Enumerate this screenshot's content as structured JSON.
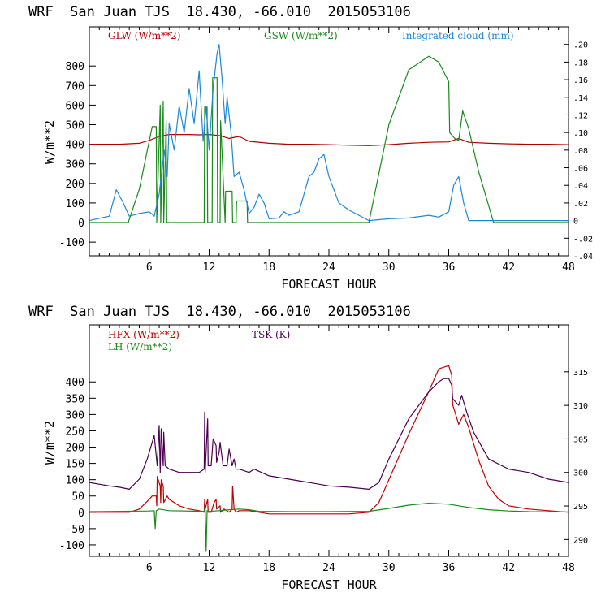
{
  "chart_data": [
    {
      "type": "line",
      "title": "WRF  San Juan TJS  18.430, -66.010  2015053106",
      "xlabel": "FORECAST HOUR",
      "ylabel": "W/m**2",
      "xlim": [
        0,
        48
      ],
      "ylim": [
        -170,
        1000
      ],
      "y2lim": [
        -0.04,
        0.22
      ],
      "x_ticks": [
        "6",
        "12",
        "18",
        "24",
        "30",
        "36",
        "42",
        "48"
      ],
      "y_ticks": [
        "-100",
        "0",
        "100",
        "200",
        "300",
        "400",
        "500",
        "600",
        "700",
        "800"
      ],
      "y2_ticks": [
        "-.04",
        "-.02",
        "0",
        ".02",
        ".04",
        ".06",
        ".08",
        ".10",
        ".12",
        ".14",
        ".16",
        ".18",
        ".20"
      ],
      "series": [
        {
          "name": "GLW (W/m**2)",
          "color": "#b00000",
          "axis": "left",
          "x": [
            0,
            3,
            5,
            6,
            7,
            8,
            9,
            10,
            11,
            12,
            13,
            14,
            15,
            16,
            18,
            20,
            22,
            24,
            26,
            28,
            30,
            32,
            34,
            36,
            37,
            38,
            40,
            42,
            44,
            46,
            48
          ],
          "y": [
            400,
            400,
            405,
            420,
            440,
            450,
            450,
            450,
            448,
            450,
            445,
            430,
            440,
            415,
            405,
            400,
            400,
            398,
            395,
            393,
            398,
            405,
            410,
            412,
            430,
            410,
            405,
            402,
            400,
            400,
            398
          ]
        },
        {
          "name": "GSW (W/m**2)",
          "color": "#1a8a1a",
          "axis": "left",
          "x": [
            0,
            3.9,
            5,
            6.3,
            6.7,
            6.75,
            7.1,
            7.15,
            7.4,
            7.45,
            7.7,
            7.75,
            8.5,
            11.5,
            11.55,
            11.8,
            11.85,
            12.3,
            12.35,
            12.8,
            12.85,
            13.1,
            13.15,
            13.6,
            13.65,
            14.3,
            14.35,
            14.7,
            14.75,
            15.8,
            15.85,
            16.5,
            28,
            30,
            32,
            34,
            35,
            36,
            36.1,
            36.6,
            37,
            37.4,
            38,
            39,
            40.5,
            48
          ],
          "y": [
            0,
            0,
            170,
            490,
            490,
            0,
            600,
            0,
            620,
            0,
            520,
            0,
            0,
            0,
            590,
            590,
            0,
            0,
            740,
            740,
            0,
            0,
            520,
            0,
            160,
            160,
            0,
            0,
            110,
            110,
            0,
            0,
            0,
            500,
            780,
            850,
            820,
            720,
            460,
            430,
            420,
            570,
            480,
            260,
            0,
            0
          ]
        },
        {
          "name": "Integrated cloud (mm)",
          "color": "#1e88d8",
          "axis": "right",
          "x": [
            0,
            2,
            2.7,
            3.4,
            4,
            5,
            6,
            6.5,
            7,
            7.5,
            7.8,
            8,
            8.5,
            9,
            9.5,
            10,
            10.5,
            11,
            11.4,
            11.7,
            12,
            12.4,
            12.8,
            13,
            13.3,
            13.6,
            13.8,
            14.2,
            14.5,
            15,
            15.5,
            16,
            16.5,
            17,
            17.5,
            18,
            19,
            19.5,
            20,
            21,
            22,
            22.5,
            23,
            23.5,
            24,
            25,
            26,
            27,
            28,
            30,
            32,
            34,
            35,
            36,
            36.5,
            37,
            37.5,
            38,
            40,
            42,
            44,
            48
          ],
          "y": [
            0,
            0.005,
            0.035,
            0.02,
            0.005,
            0.008,
            0.01,
            0.005,
            0.03,
            0.08,
            0.05,
            0.11,
            0.08,
            0.13,
            0.1,
            0.15,
            0.11,
            0.17,
            0.09,
            0.13,
            0.08,
            0.15,
            0.19,
            0.2,
            0.16,
            0.11,
            0.14,
            0.1,
            0.05,
            0.055,
            0.035,
            0.008,
            0.015,
            0.03,
            0.02,
            0.002,
            0.003,
            0.01,
            0.006,
            0.01,
            0.05,
            0.055,
            0.07,
            0.075,
            0.05,
            0.02,
            0.012,
            0.006,
            0,
            0.002,
            0.003,
            0.006,
            0.004,
            0.01,
            0.04,
            0.05,
            0.02,
            0,
            0,
            0,
            0,
            0
          ]
        }
      ]
    },
    {
      "type": "line",
      "title": "WRF  San Juan TJS  18.430, -66.010  2015053106",
      "xlabel": "FORECAST HOUR",
      "ylabel": "W/m**2",
      "xlim": [
        0,
        48
      ],
      "ylim": [
        -135,
        575
      ],
      "y2lim": [
        287.5,
        322
      ],
      "x_ticks": [
        "6",
        "12",
        "18",
        "24",
        "30",
        "36",
        "42",
        "48"
      ],
      "y_ticks": [
        "-100",
        "-50",
        "0",
        "50",
        "100",
        "150",
        "200",
        "250",
        "300",
        "350",
        "400"
      ],
      "y2_ticks": [
        "290",
        "295",
        "300",
        "305",
        "310",
        "315"
      ],
      "series": [
        {
          "name": "HFX (W/m**2)",
          "color": "#c00000",
          "axis": "left",
          "x": [
            0,
            3,
            4,
            5,
            6,
            6.3,
            6.7,
            6.75,
            6.8,
            7.1,
            7.15,
            7.2,
            7.4,
            7.45,
            7.8,
            8,
            9,
            10,
            11,
            11.5,
            11.55,
            11.6,
            11.85,
            11.9,
            12.2,
            12.5,
            12.7,
            12.75,
            13.1,
            13.15,
            13.5,
            14,
            14.3,
            14.35,
            14.5,
            14.7,
            15,
            16,
            17,
            18,
            20,
            22,
            24,
            26,
            28,
            29,
            30,
            32,
            34,
            35,
            36,
            36.3,
            36.4,
            37,
            37.5,
            38,
            39,
            40,
            41,
            42,
            44,
            46,
            48
          ],
          "y": [
            0,
            0,
            0,
            10,
            40,
            50,
            50,
            20,
            110,
            80,
            30,
            100,
            80,
            30,
            50,
            40,
            20,
            10,
            5,
            0,
            40,
            10,
            40,
            0,
            0,
            30,
            40,
            10,
            20,
            0,
            10,
            0,
            10,
            80,
            10,
            0,
            5,
            5,
            0,
            -5,
            -5,
            -5,
            -5,
            -5,
            0,
            30,
            100,
            240,
            370,
            440,
            450,
            420,
            330,
            270,
            300,
            260,
            160,
            80,
            40,
            20,
            10,
            5,
            0
          ]
        },
        {
          "name": "LH  (W/m**2)",
          "color": "#1a8a1a",
          "axis": "left",
          "x": [
            0,
            6,
            6.5,
            6.6,
            6.7,
            7,
            8,
            11.5,
            11.6,
            11.7,
            11.8,
            12,
            13,
            14,
            15,
            16,
            17,
            20,
            24,
            28,
            30,
            32,
            34,
            36,
            38,
            40,
            42,
            44,
            48
          ],
          "y": [
            2,
            4,
            5,
            -50,
            5,
            10,
            5,
            3,
            15,
            -120,
            5,
            3,
            5,
            8,
            10,
            8,
            3,
            2,
            2,
            3,
            12,
            22,
            28,
            25,
            15,
            8,
            4,
            2,
            1
          ]
        },
        {
          "name": "TSK (K)",
          "color": "#4b0050",
          "axis": "right",
          "x": [
            0,
            2,
            3,
            4,
            5,
            5.8,
            6.3,
            6.5,
            6.8,
            7,
            7.1,
            7.2,
            7.4,
            7.45,
            7.6,
            8,
            9,
            10,
            11,
            11.5,
            11.55,
            11.6,
            11.85,
            11.9,
            12.2,
            12.4,
            12.7,
            12.75,
            13,
            13.1,
            13.4,
            13.8,
            14,
            14.3,
            14.5,
            14.7,
            15,
            16,
            16.5,
            18,
            20,
            22,
            24,
            26,
            28,
            29,
            30,
            32,
            34,
            35,
            35.5,
            36,
            36.3,
            36.4,
            37,
            37.3,
            37.8,
            38.5,
            40,
            42,
            44,
            46,
            48
          ],
          "y": [
            298.5,
            298,
            297.8,
            297.5,
            299,
            302,
            304.5,
            305.5,
            301,
            307,
            300,
            306.5,
            301,
            306,
            301,
            300.5,
            300,
            300,
            300,
            300.5,
            309,
            300,
            308,
            301,
            301,
            305,
            304,
            301.5,
            303,
            304.5,
            301,
            301,
            303.5,
            301,
            302,
            300.5,
            300.5,
            300,
            300.5,
            299.5,
            299,
            298.5,
            298,
            297.8,
            297.5,
            298.5,
            302,
            308,
            312,
            313.5,
            314,
            314,
            313,
            311,
            310,
            311.5,
            309,
            306,
            302,
            300.5,
            300,
            299,
            298.5
          ]
        }
      ]
    }
  ],
  "panels": [
    {
      "title": "WRF  San Juan TJS  18.430, -66.010  2015053106",
      "xlabel": "FORECAST HOUR",
      "ylabel": "W/m**2",
      "legend": [
        "GLW (W/m**2)",
        "GSW (W/m**2)",
        "Integrated cloud (mm)"
      ],
      "colors": [
        "#b00000",
        "#1a8a1a",
        "#1e88d8"
      ]
    },
    {
      "title": "WRF  San Juan TJS  18.430, -66.010  2015053106",
      "xlabel": "FORECAST HOUR",
      "ylabel": "W/m**2",
      "legend": [
        "HFX (W/m**2)",
        "LH  (W/m**2)",
        "TSK (K)"
      ],
      "colors": [
        "#c00000",
        "#1a8a1a",
        "#4b0050"
      ]
    }
  ]
}
